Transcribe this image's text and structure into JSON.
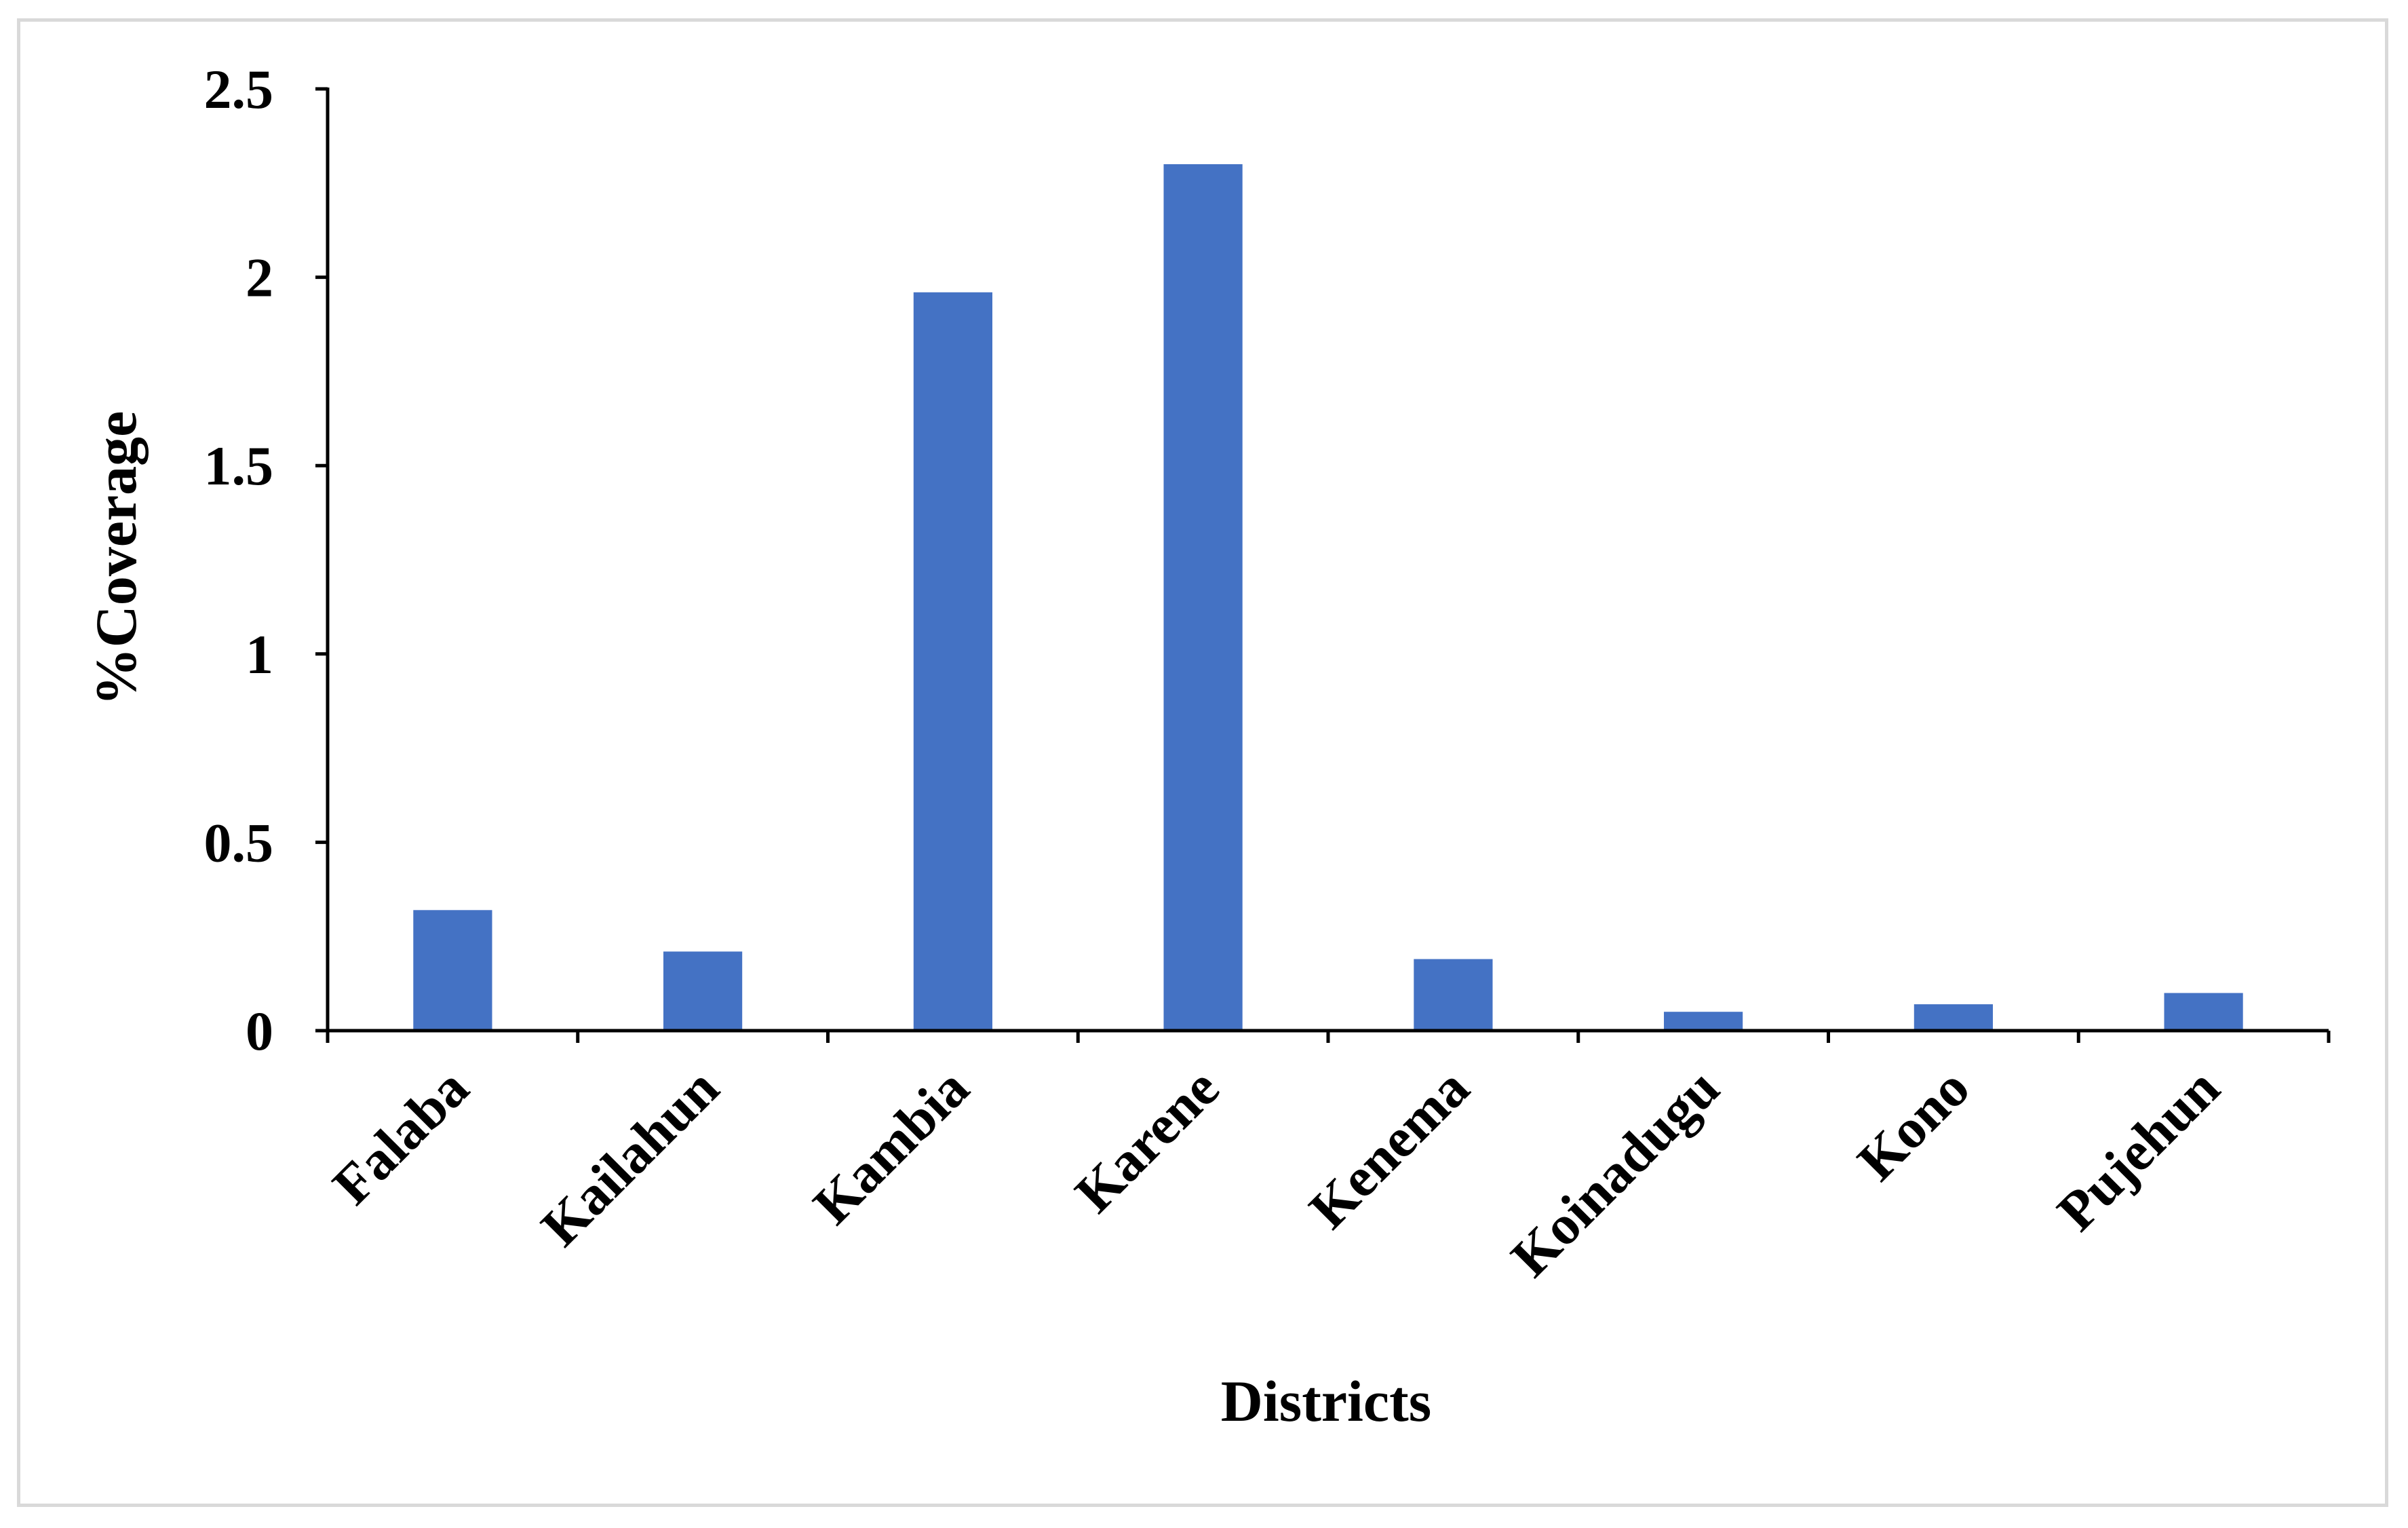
{
  "chart_data": {
    "type": "bar",
    "categories": [
      "Falaba",
      "Kailahun",
      "Kambia",
      "Karene",
      "Kenema",
      "Koinadugu",
      "Kono",
      "Pujehun"
    ],
    "values": [
      0.32,
      0.21,
      1.96,
      2.3,
      0.19,
      0.05,
      0.07,
      0.1
    ],
    "title": "",
    "xlabel": "Districts",
    "ylabel": "%Coverage",
    "ylim": [
      0,
      2.5
    ],
    "yticks": [
      0,
      0.5,
      1,
      1.5,
      2,
      2.5
    ],
    "ytick_labels": [
      "0",
      "0.5",
      "1",
      "1.5",
      "2",
      "2.5"
    ],
    "bar_color": "#4472C4",
    "grid": false,
    "legend": "none"
  }
}
